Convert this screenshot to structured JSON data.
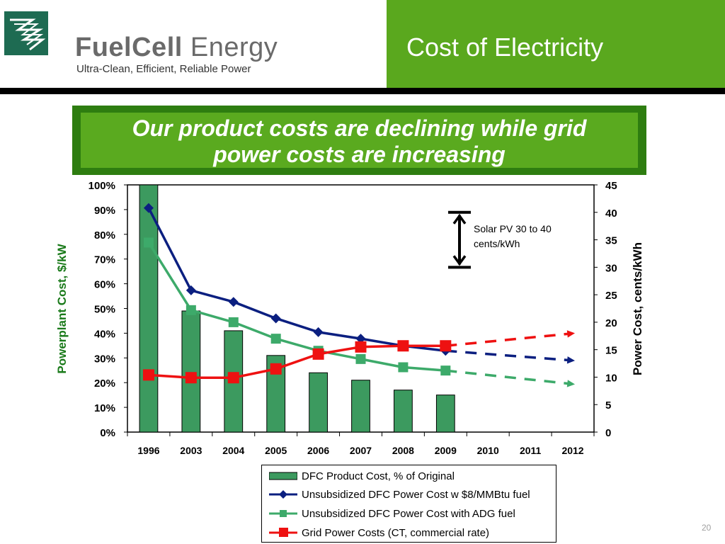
{
  "header": {
    "logo_name_bold": "FuelCell",
    "logo_name_regular": "Energy",
    "logo_tagline": "Ultra-Clean, Efficient, Reliable Power",
    "title": "Cost of Electricity"
  },
  "banner": {
    "line1": "Our product costs are declining while grid",
    "line2": "power costs are increasing"
  },
  "page_number": "20",
  "annotation": {
    "line1": "Solar PV 30 to 40",
    "line2": "cents/kWh"
  },
  "colors": {
    "brand_green": "#5aa81e",
    "bar_fill": "#3c9a5f",
    "series_blue": "#0b1f80",
    "series_green": "#3daa6a",
    "series_red": "#ee1111"
  },
  "chart_data": {
    "type": "bar",
    "categories": [
      "1996",
      "2003",
      "2004",
      "2005",
      "2006",
      "2007",
      "2008",
      "2009",
      "2010",
      "2011",
      "2012"
    ],
    "ylabel": "Powerplant Cost, $/kW",
    "y2label": "Power Cost, cents/kWh",
    "ylim": [
      0,
      100
    ],
    "y2lim": [
      0,
      45
    ],
    "y_ticks": [
      "0%",
      "10%",
      "20%",
      "30%",
      "40%",
      "50%",
      "60%",
      "70%",
      "80%",
      "90%",
      "100%"
    ],
    "y2_ticks": [
      "0",
      "5",
      "10",
      "15",
      "20",
      "25",
      "30",
      "35",
      "40",
      "45"
    ],
    "series": [
      {
        "name": "DFC Product Cost, % of Original",
        "type": "bar",
        "axis": "left",
        "values": [
          100,
          49,
          41,
          31,
          24,
          21,
          17,
          15,
          null,
          null,
          null
        ]
      },
      {
        "name": "Unsubsidized DFC Power Cost w $8/MMBtu fuel",
        "type": "line",
        "axis": "right",
        "values": [
          40.8,
          25.8,
          23.7,
          20.7,
          18.2,
          17.0,
          15.7,
          14.8,
          null,
          null,
          null
        ],
        "projection": [
          14.8,
          null,
          null,
          13.0
        ]
      },
      {
        "name": "Unsubsidized DFC Power Cost with ADG fuel",
        "type": "line",
        "axis": "right",
        "values": [
          34.5,
          22.2,
          20.0,
          17.0,
          14.8,
          13.3,
          11.8,
          11.2,
          null,
          null,
          null
        ],
        "projection": [
          11.2,
          null,
          null,
          8.7
        ]
      },
      {
        "name": "Grid Power Costs (CT, commercial rate)",
        "type": "line",
        "axis": "right",
        "values": [
          10.4,
          9.9,
          9.9,
          11.5,
          14.2,
          15.5,
          15.7,
          15.7,
          null,
          null,
          null
        ],
        "projection": [
          15.7,
          null,
          null,
          18.0
        ]
      }
    ],
    "annotation_range": [
      30,
      40
    ],
    "legend_position": "bottom"
  }
}
